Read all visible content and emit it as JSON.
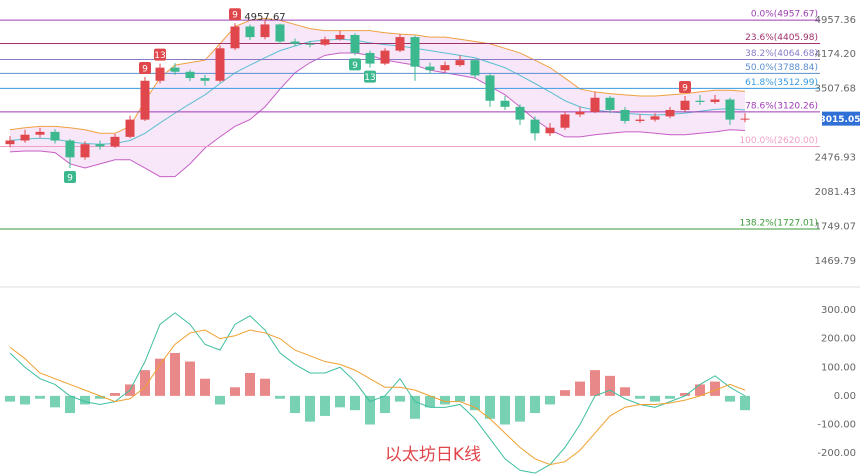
{
  "chart_data": [
    {
      "type": "candlestick",
      "log_scale": true,
      "annotate_high": true,
      "ylim": [
        1302,
        5487
      ],
      "yticks": [
        4957.36,
        {
          "value": 4174.2,
          "label": "4174.20"
        },
        3507.68,
        2476.93,
        2081.43,
        1749.07,
        1469.79
      ],
      "up_color": "#e0474c",
      "down_color": "#3cb88f",
      "open": [
        2650,
        2700,
        2780,
        2820,
        2700,
        2480,
        2650,
        2620,
        2750,
        3000,
        3650,
        3900,
        3820,
        3700,
        3650,
        4300,
        4800,
        4550,
        4850,
        4450,
        4400,
        4380,
        4500,
        4600,
        4200,
        3980,
        4250,
        4550,
        3920,
        3850,
        3950,
        4050,
        3750,
        3300,
        3200,
        3000,
        2800,
        2880,
        3080,
        3120,
        3350,
        3150,
        2980,
        3000,
        3050,
        3150,
        3300,
        3280,
        3320,
        3000
      ],
      "high": [
        2760,
        2850,
        2880,
        2860,
        2720,
        2690,
        2700,
        2790,
        3060,
        3720,
        3980,
        3990,
        3860,
        3760,
        4360,
        4880,
        4850,
        4957.67,
        4870,
        4520,
        4460,
        4560,
        4700,
        4640,
        4250,
        4300,
        4620,
        4580,
        4000,
        4020,
        4150,
        4080,
        3780,
        3380,
        3240,
        3050,
        2950,
        3130,
        3200,
        3450,
        3380,
        3200,
        3080,
        3100,
        3200,
        3380,
        3400,
        3400,
        3350,
        3100
      ],
      "low": [
        2610,
        2670,
        2740,
        2660,
        2350,
        2450,
        2580,
        2600,
        2730,
        2980,
        3600,
        3760,
        3640,
        3560,
        3620,
        4260,
        4480,
        4500,
        4400,
        4350,
        4320,
        4350,
        4470,
        4150,
        3900,
        3950,
        4220,
        3650,
        3780,
        3800,
        3920,
        3700,
        3200,
        3150,
        2920,
        2700,
        2760,
        2850,
        3040,
        3100,
        3100,
        2940,
        2950,
        2970,
        3020,
        3120,
        3230,
        3250,
        2920,
        2960
      ],
      "close": [
        2700,
        2780,
        2820,
        2700,
        2480,
        2650,
        2620,
        2750,
        3000,
        3650,
        3900,
        3820,
        3700,
        3650,
        4300,
        4800,
        4550,
        4850,
        4450,
        4400,
        4380,
        4500,
        4600,
        4200,
        3980,
        4250,
        4550,
        3920,
        3850,
        3950,
        4050,
        3750,
        3300,
        3200,
        3000,
        2800,
        2880,
        3080,
        3120,
        3350,
        3150,
        2980,
        3000,
        3050,
        3150,
        3300,
        3280,
        3320,
        3000,
        3015.05
      ],
      "td_sell": [
        null,
        null,
        null,
        null,
        null,
        null,
        null,
        null,
        null,
        "9",
        "13",
        null,
        null,
        null,
        null,
        "9",
        null,
        null,
        null,
        null,
        null,
        null,
        null,
        null,
        null,
        null,
        null,
        null,
        null,
        null,
        null,
        null,
        null,
        null,
        null,
        null,
        null,
        null,
        null,
        null,
        null,
        null,
        null,
        null,
        null,
        "9",
        null,
        null,
        null,
        null
      ],
      "td_buy": [
        null,
        null,
        null,
        null,
        "9",
        null,
        null,
        null,
        null,
        null,
        null,
        null,
        null,
        null,
        null,
        null,
        null,
        null,
        null,
        null,
        null,
        null,
        null,
        "9",
        "13",
        null,
        null,
        null,
        null,
        null,
        null,
        null,
        null,
        null,
        null,
        null,
        null,
        null,
        null,
        null,
        null,
        null,
        null,
        null,
        null,
        null,
        null,
        null,
        null,
        null
      ],
      "bollinger": {
        "fill": "rgba(214,120,220,0.18)",
        "upper_color": "#f0a040",
        "middle_color": "#5bbfd0",
        "lower_color": "#c65fc6",
        "upper": [
          2850,
          2880,
          2900,
          2900,
          2880,
          2850,
          2800,
          2800,
          2900,
          3300,
          3700,
          3950,
          4000,
          4050,
          4400,
          4800,
          4950,
          5000,
          4950,
          4850,
          4750,
          4700,
          4700,
          4700,
          4700,
          4650,
          4620,
          4600,
          4550,
          4550,
          4500,
          4450,
          4400,
          4300,
          4200,
          4050,
          3900,
          3700,
          3500,
          3450,
          3420,
          3400,
          3380,
          3380,
          3400,
          3420,
          3450,
          3480,
          3480,
          3460
        ],
        "middle": [
          2700,
          2720,
          2730,
          2720,
          2680,
          2660,
          2650,
          2660,
          2700,
          2800,
          2950,
          3100,
          3250,
          3400,
          3600,
          3800,
          3950,
          4100,
          4250,
          4350,
          4450,
          4480,
          4500,
          4480,
          4420,
          4380,
          4350,
          4300,
          4250,
          4200,
          4150,
          4100,
          4000,
          3900,
          3750,
          3600,
          3450,
          3300,
          3200,
          3150,
          3120,
          3100,
          3080,
          3070,
          3080,
          3100,
          3130,
          3160,
          3170,
          3150
        ],
        "lower": [
          2550,
          2560,
          2560,
          2540,
          2400,
          2350,
          2400,
          2450,
          2450,
          2350,
          2250,
          2250,
          2400,
          2600,
          2750,
          2900,
          3000,
          3200,
          3500,
          3800,
          4000,
          4150,
          4200,
          4200,
          4150,
          4050,
          4000,
          3950,
          3850,
          3800,
          3750,
          3700,
          3550,
          3400,
          3200,
          3000,
          2850,
          2750,
          2750,
          2780,
          2800,
          2820,
          2820,
          2800,
          2780,
          2780,
          2800,
          2820,
          2850,
          2840
        ]
      },
      "fib_levels": [
        {
          "label": "0.0%(4957.67)",
          "value": 4957.67,
          "color": "#9c3fb0"
        },
        {
          "label": "23.6%(4405.98)",
          "value": 4405.98,
          "color": "#a0306a"
        },
        {
          "label": "38.2%(4064.68)",
          "value": 4064.68,
          "color": "#8a7bc8"
        },
        {
          "label": "50.0%(3788.84)",
          "value": 3788.84,
          "color": "#5a8fd0"
        },
        {
          "label": "61.8%(3512.99)",
          "value": 3512.99,
          "color": "#3a9ae0"
        },
        {
          "label": "78.6%(3120.26)",
          "value": 3120.26,
          "color": "#a03ab8"
        },
        {
          "label": "100.0%(2620.00)",
          "value": 2620,
          "color": "#f0a0c8"
        },
        {
          "label": "138.2%(1727.01)",
          "value": 1727.01,
          "color": "#3a9a3a"
        }
      ],
      "price_tag_color": "#2f6fd6"
    },
    {
      "type": "macd",
      "ylim": [
        -280,
        370
      ],
      "yticks": [
        {
          "value": 300,
          "label": "300.00"
        },
        {
          "value": 200,
          "label": "200.00"
        },
        {
          "value": 100,
          "label": "100.00"
        },
        {
          "value": 0,
          "label": "0.00"
        },
        {
          "value": -100,
          "label": "-100.00"
        },
        {
          "value": -200,
          "label": "-200.00"
        }
      ],
      "pos_color": "#e57373",
      "neg_color": "#5fc9a5",
      "histogram": [
        -20,
        -30,
        -10,
        -40,
        -60,
        -30,
        -10,
        10,
        40,
        90,
        130,
        150,
        120,
        60,
        -30,
        30,
        80,
        60,
        -10,
        -60,
        -90,
        -70,
        -40,
        -50,
        -100,
        -60,
        -20,
        -80,
        -40,
        -30,
        -20,
        -50,
        -80,
        -100,
        -90,
        -60,
        -30,
        20,
        50,
        90,
        70,
        30,
        -10,
        -20,
        -10,
        10,
        40,
        50,
        -20,
        -50
      ],
      "series": [
        {
          "color": "#3fbfa0",
          "values": [
            150,
            100,
            60,
            40,
            0,
            -20,
            -30,
            -20,
            20,
            120,
            250,
            290,
            250,
            180,
            160,
            250,
            280,
            230,
            150,
            110,
            80,
            80,
            100,
            50,
            -20,
            0,
            60,
            -20,
            -40,
            -40,
            -30,
            -80,
            -150,
            -220,
            -260,
            -270,
            -240,
            -180,
            -100,
            0,
            20,
            -10,
            -30,
            -40,
            -20,
            0,
            40,
            70,
            30,
            0
          ]
        },
        {
          "color": "#f0a030",
          "values": [
            170,
            130,
            80,
            60,
            40,
            20,
            0,
            -20,
            -10,
            30,
            110,
            180,
            220,
            230,
            200,
            210,
            230,
            220,
            200,
            160,
            140,
            120,
            110,
            90,
            60,
            30,
            30,
            20,
            0,
            -20,
            -20,
            -40,
            -80,
            -130,
            -180,
            -220,
            -240,
            -230,
            -190,
            -130,
            -70,
            -40,
            -30,
            -30,
            -25,
            -15,
            0,
            20,
            40,
            20
          ]
        }
      ]
    }
  ],
  "watermark": "以太坊日K线"
}
